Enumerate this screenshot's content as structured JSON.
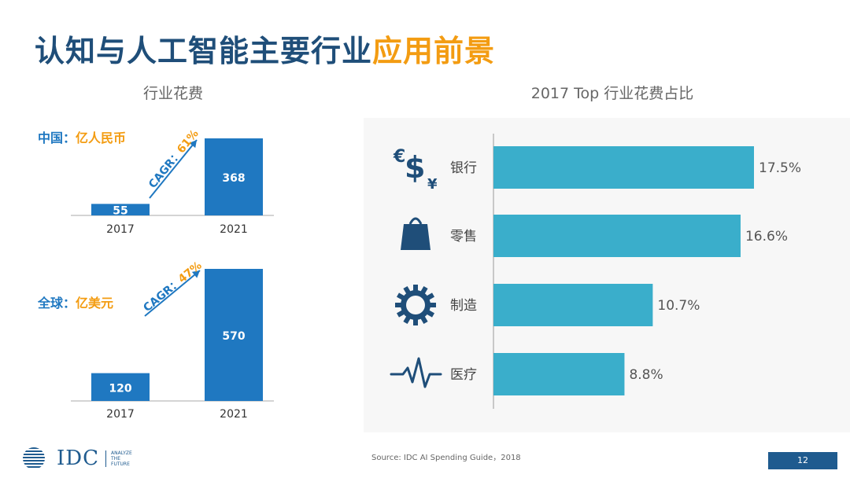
{
  "title": {
    "main": "认知与人工智能主要行业",
    "accent": "应用前景"
  },
  "left_section": {
    "title": "行业花费",
    "charts": [
      {
        "region": "中国：",
        "unit": "亿人民币",
        "cagr": "CAGR：61%"
      },
      {
        "region": "全球：",
        "unit": "亿美元",
        "cagr": "CAGR：47%"
      }
    ]
  },
  "right_section": {
    "title": "2017 Top 行业花费占比"
  },
  "footer": {
    "source": "Source: IDC AI Spending Guide，2018",
    "page": "12",
    "logo": "IDC",
    "tagline": [
      "ANALYZE",
      "THE",
      "FUTURE"
    ]
  },
  "colors": {
    "title": "#1f4e79",
    "accent": "#f39c12",
    "bar": "#1f78c1",
    "hbar": "#3aaecb",
    "icon": "#1f4e79"
  },
  "chart_data": [
    {
      "type": "bar",
      "title": "中国：亿人民币",
      "categories": [
        "2017",
        "2021"
      ],
      "values": [
        55,
        368
      ],
      "value_labels": [
        "55",
        "368"
      ],
      "annotation": "CAGR：61%"
    },
    {
      "type": "bar",
      "title": "全球：亿美元",
      "categories": [
        "2017",
        "2021"
      ],
      "values": [
        120,
        570
      ],
      "value_labels": [
        "120",
        "570"
      ],
      "annotation": "CAGR：47%"
    },
    {
      "type": "bar",
      "orientation": "horizontal",
      "title": "2017 Top 行业花费占比",
      "categories": [
        "银行",
        "零售",
        "制造",
        "医疗"
      ],
      "values": [
        17.5,
        16.6,
        10.7,
        8.8
      ],
      "value_labels": [
        "17.5%",
        "16.6%",
        "10.7%",
        "8.8%"
      ],
      "icons": [
        "currency-icon",
        "shopping-bag-icon",
        "gear-icon",
        "heartbeat-icon"
      ]
    }
  ]
}
